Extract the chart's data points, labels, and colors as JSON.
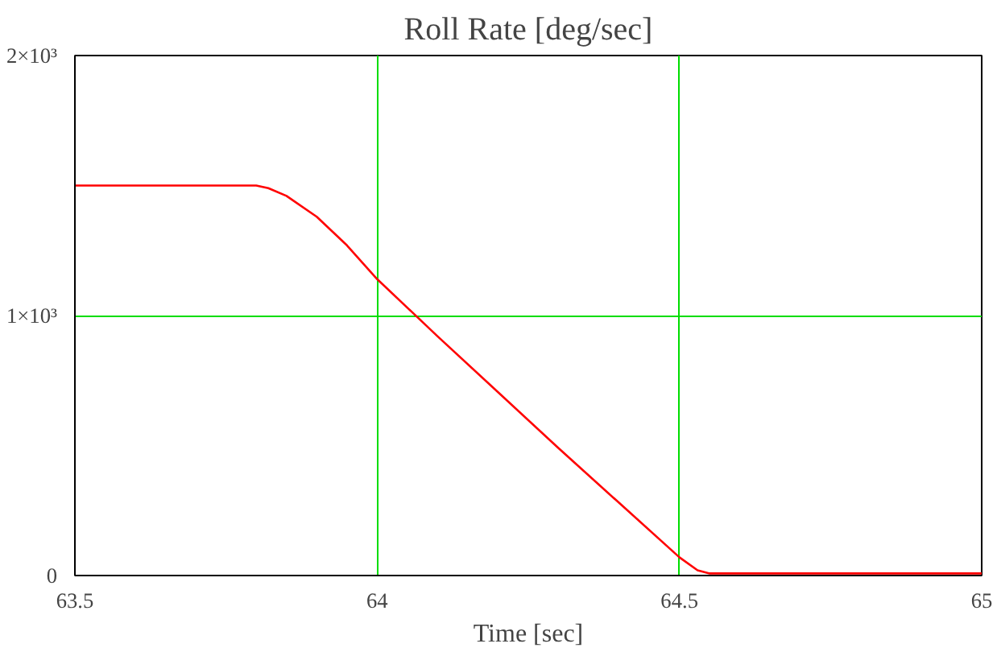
{
  "chart_data": {
    "type": "line",
    "title": "Roll Rate [deg/sec]",
    "xlabel": "Time [sec]",
    "x": [
      63.5,
      63.8,
      63.82,
      63.85,
      63.9,
      63.95,
      64,
      64.1,
      64.2,
      64.3,
      64.4,
      64.5,
      64.53,
      64.55,
      65
    ],
    "series": [
      {
        "color": "#ff0000",
        "values": [
          1500,
          1500,
          1490,
          1460,
          1380,
          1270,
          1140,
          920,
          705,
          490,
          280,
          70,
          20,
          8,
          8
        ]
      }
    ],
    "xlim": [
      63.5,
      65
    ],
    "ylim": [
      0,
      2000
    ],
    "xticks": [
      63.5,
      64,
      64.5,
      65
    ],
    "yticks": [
      0,
      {
        "value": 1000,
        "label": "1×10³"
      },
      {
        "value": 2000,
        "label": "2×10³"
      }
    ],
    "grid": true,
    "marker": "none",
    "line_style": "solid"
  }
}
